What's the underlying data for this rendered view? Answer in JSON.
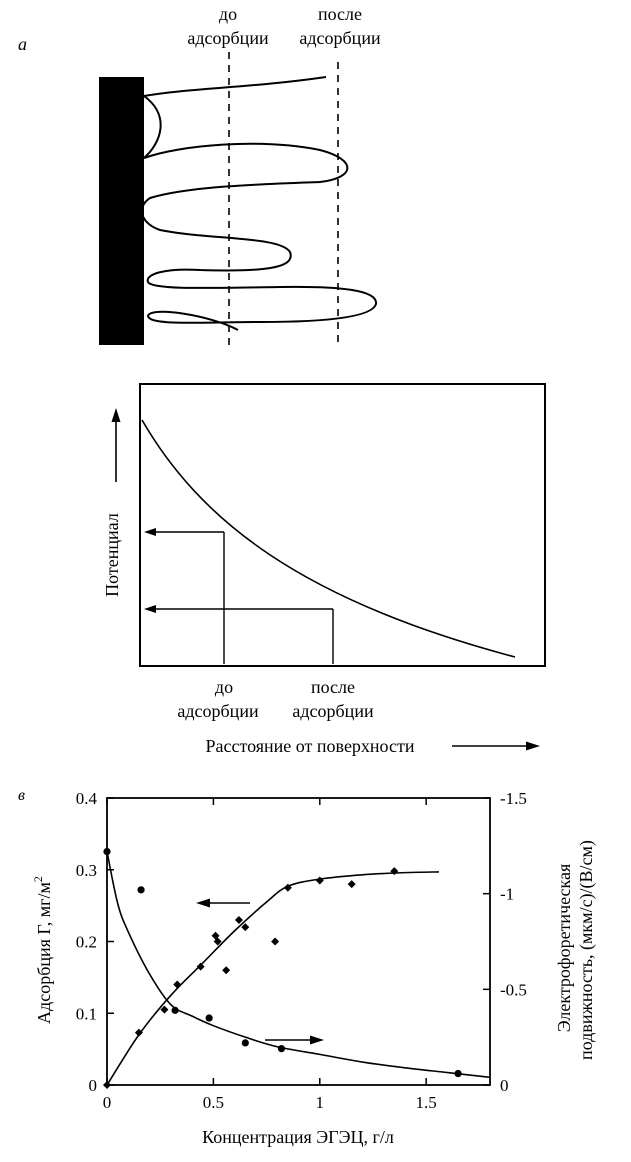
{
  "panel_a": {
    "letter": "а",
    "before_label": [
      "до",
      "адсорбции"
    ],
    "after_label": [
      "после",
      "адсорбции"
    ]
  },
  "panel_b": {
    "ylabel": "Потенциал",
    "xlabel": "Расстояние от поверхности",
    "before_label": [
      "до",
      "адсорбции"
    ],
    "after_label": [
      "после",
      "адсорбции"
    ]
  },
  "panel_c": {
    "letter": "в",
    "xlabel": "Концентрация ЭГЭЦ, г/л",
    "ylabel_left": "Адсорбция Г, мг/м",
    "ylabel_left_sup": "2",
    "ylabel_right_1": "Электрофоретическая",
    "ylabel_right_2": "подвижность, (мкм/с)/(В/см)"
  },
  "chart_data": [
    {
      "type": "line",
      "title": "",
      "xlabel": "Расстояние от поверхности",
      "ylabel": "Потенциал",
      "series": [
        {
          "x": [
            0,
            0.1,
            0.2,
            0.3,
            0.4,
            0.5,
            0.6,
            0.7,
            0.8,
            0.9,
            1.0
          ],
          "values": [
            1.0,
            0.8,
            0.64,
            0.5,
            0.39,
            0.3,
            0.23,
            0.17,
            0.12,
            0.08,
            0.05
          ]
        }
      ],
      "markers": [
        {
          "label": "до адсорбции",
          "x": 0.21,
          "y": 0.61
        },
        {
          "label": "после адсорбции",
          "x": 0.51,
          "y": 0.29
        }
      ],
      "ticks": "none"
    },
    {
      "type": "scatter",
      "title": "",
      "xlabel": "Концентрация ЭГЭЦ, г/л",
      "ylabel": "Адсорбция Г, мг/м2",
      "y2label": "Электрофоретическая подвижность, (мкм/с)/(В/см)",
      "xlim": [
        0,
        1.8
      ],
      "ylim": [
        0,
        0.4
      ],
      "y2lim": [
        0,
        -1.5
      ],
      "xticks": [
        "0",
        "0.5",
        "1",
        "1.5"
      ],
      "yticks": [
        "0",
        "0.1",
        "0.2",
        "0.3",
        "0.4"
      ],
      "y2ticks": [
        "0",
        "-0.5",
        "-1",
        "-1.5"
      ],
      "series": [
        {
          "marker": "diamond",
          "axis": "left",
          "points": [
            [
              0,
              0
            ],
            [
              0.15,
              0.073
            ],
            [
              0.27,
              0.105
            ],
            [
              0.33,
              0.14
            ],
            [
              0.44,
              0.165
            ],
            [
              0.51,
              0.208
            ],
            [
              0.52,
              0.2
            ],
            [
              0.56,
              0.16
            ],
            [
              0.62,
              0.23
            ],
            [
              0.65,
              0.22
            ],
            [
              0.79,
              0.2
            ],
            [
              0.85,
              0.275
            ],
            [
              1.0,
              0.285
            ],
            [
              1.15,
              0.28
            ],
            [
              1.35,
              0.298
            ]
          ],
          "fit": [
            [
              0,
              0
            ],
            [
              0.15,
              0.07
            ],
            [
              0.3,
              0.125
            ],
            [
              0.45,
              0.17
            ],
            [
              0.6,
              0.215
            ],
            [
              0.75,
              0.255
            ],
            [
              0.85,
              0.277
            ],
            [
              1.0,
              0.287
            ],
            [
              1.2,
              0.293
            ],
            [
              1.4,
              0.296
            ],
            [
              1.56,
              0.297
            ]
          ]
        },
        {
          "marker": "circle",
          "axis": "right",
          "points": [
            [
              0,
              -1.22
            ],
            [
              0.16,
              -1.02
            ],
            [
              0.32,
              -0.39
            ],
            [
              0.48,
              -0.35
            ],
            [
              0.65,
              -0.22
            ],
            [
              0.82,
              -0.19
            ],
            [
              1.65,
              -0.06
            ]
          ],
          "fit": [
            [
              0,
              -1.22
            ],
            [
              0.05,
              -0.95
            ],
            [
              0.1,
              -0.8
            ],
            [
              0.2,
              -0.58
            ],
            [
              0.3,
              -0.42
            ],
            [
              0.4,
              -0.36
            ],
            [
              0.5,
              -0.31
            ],
            [
              0.65,
              -0.25
            ],
            [
              0.8,
              -0.2
            ],
            [
              1.0,
              -0.16
            ],
            [
              1.2,
              -0.12
            ],
            [
              1.4,
              -0.09
            ],
            [
              1.6,
              -0.065
            ],
            [
              1.8,
              -0.04
            ]
          ]
        }
      ]
    }
  ]
}
